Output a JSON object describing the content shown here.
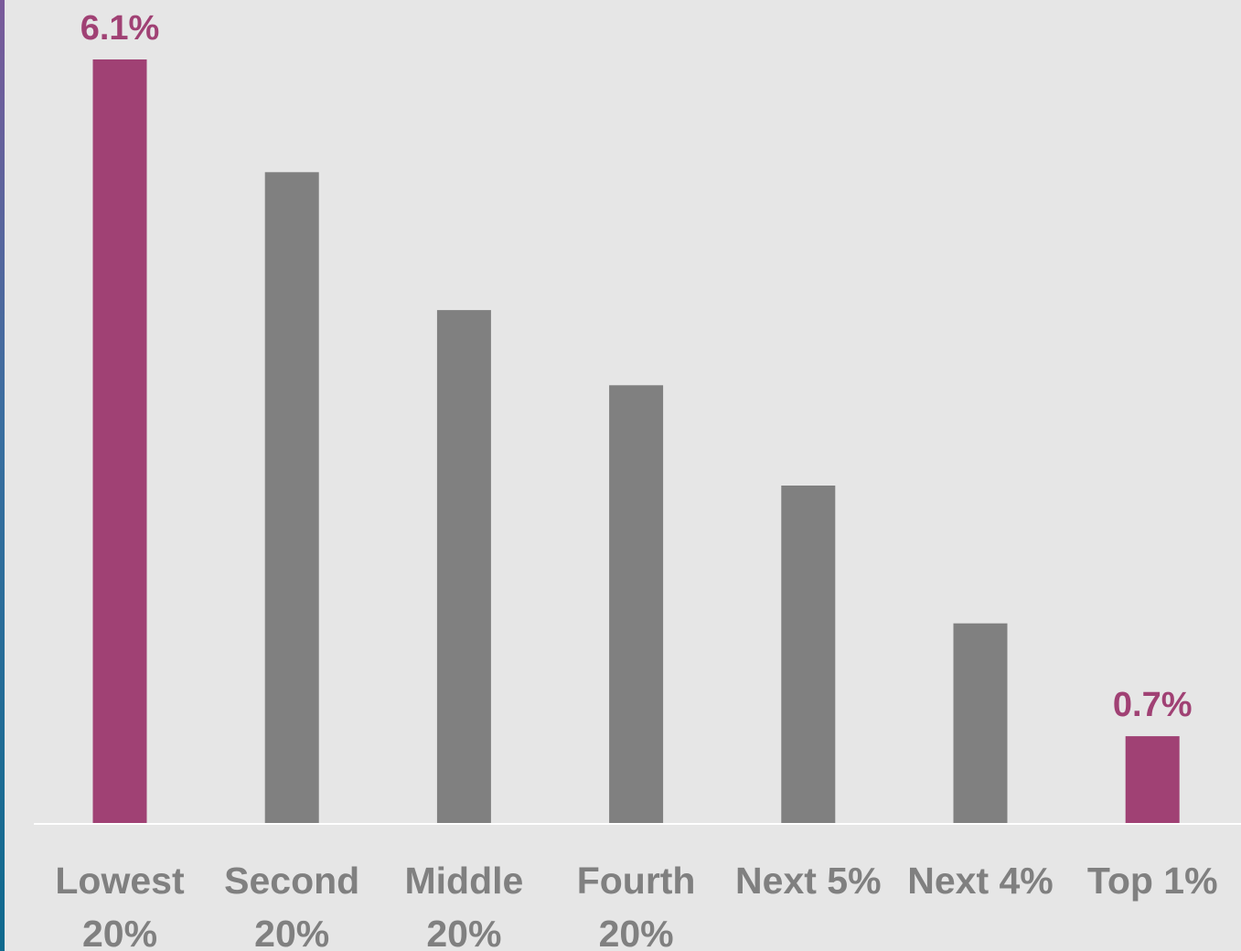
{
  "chart_data": {
    "type": "bar",
    "categories": [
      [
        "Lowest",
        "20%"
      ],
      [
        "Second",
        "20%"
      ],
      [
        "Middle",
        "20%"
      ],
      [
        "Fourth",
        "20%"
      ],
      [
        "Next 5%"
      ],
      [
        "Next 4%"
      ],
      [
        "Top 1%"
      ]
    ],
    "values": [
      6.1,
      5.2,
      4.1,
      3.5,
      2.7,
      1.6,
      0.7
    ],
    "data_labels": [
      "6.1%",
      "",
      "",
      "",
      "",
      "",
      "0.7%"
    ],
    "highlighted": [
      true,
      false,
      false,
      false,
      false,
      false,
      true
    ],
    "ylim": [
      0,
      6.1
    ],
    "grid": false,
    "legend": "none",
    "colors": {
      "highlight": "#a04174",
      "default": "#808080",
      "background": "#e6e6e6",
      "axis": "#ffffff",
      "label_text": "#808080"
    }
  }
}
